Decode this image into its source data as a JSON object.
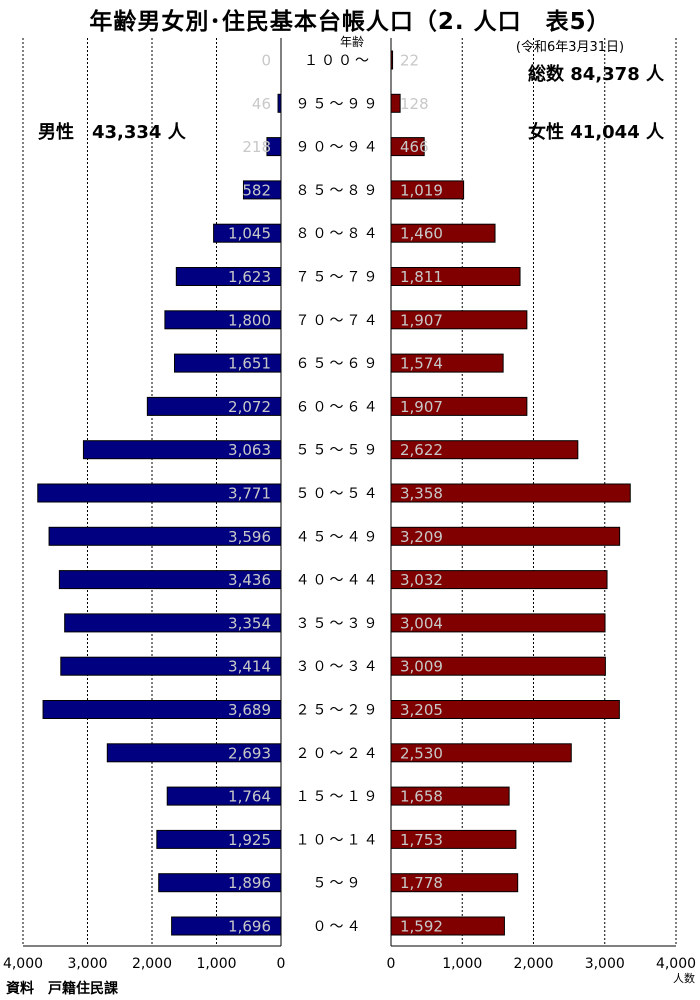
{
  "title": "年齢男女別･住民基本台帳人口（2. 人口　表5）",
  "date": "(令和6年3月31日)",
  "total": "総数 84,378 人",
  "male_total": "男性　43,334 人",
  "female_total": "女性 41,044 人",
  "source": "資料　戸籍住民課",
  "age_heading": "年齢",
  "unit": "人数",
  "colors": {
    "male": "#000080",
    "female": "#800000"
  },
  "chart_data": {
    "type": "bar",
    "orientation": "horizontal-population-pyramid",
    "categories": [
      "100～",
      "95～99",
      "90～94",
      "85～89",
      "80～84",
      "75～79",
      "70～74",
      "65～69",
      "60～64",
      "55～59",
      "50～54",
      "45～49",
      "40～44",
      "35～39",
      "30～34",
      "25～29",
      "20～24",
      "15～19",
      "10～14",
      "5～9",
      "0～4"
    ],
    "series": [
      {
        "name": "男性",
        "values": [
          0,
          46,
          218,
          582,
          1045,
          1623,
          1800,
          1651,
          2072,
          3063,
          3771,
          3596,
          3436,
          3354,
          3414,
          3689,
          2693,
          1764,
          1925,
          1896,
          1696
        ],
        "labels": [
          "0",
          "46",
          "218",
          "582",
          "1,045",
          "1,623",
          "1,800",
          "1,651",
          "2,072",
          "3,063",
          "3,771",
          "3,596",
          "3,436",
          "3,354",
          "3,414",
          "3,689",
          "2,693",
          "1,764",
          "1,925",
          "1,896",
          "1,696"
        ]
      },
      {
        "name": "女性",
        "values": [
          22,
          128,
          466,
          1019,
          1460,
          1811,
          1907,
          1574,
          1907,
          2622,
          3358,
          3209,
          3032,
          3004,
          3009,
          3205,
          2530,
          1658,
          1753,
          1778,
          1592
        ],
        "labels": [
          "22",
          "128",
          "466",
          "1,019",
          "1,460",
          "1,811",
          "1,907",
          "1,574",
          "1,907",
          "2,622",
          "3,358",
          "3,209",
          "3,032",
          "3,004",
          "3,009",
          "3,205",
          "2,530",
          "1,658",
          "1,753",
          "1,778",
          "1,592"
        ]
      }
    ],
    "age_labels": [
      "１００～",
      "９５～９９",
      "９０～９４",
      "８５～８９",
      "８０～８４",
      "７５～７９",
      "７０～７４",
      "６５～６９",
      "６０～６４",
      "５５～５９",
      "５０～５４",
      "４５～４９",
      "４０～４４",
      "３５～３９",
      "３０～３４",
      "２５～２９",
      "２０～２４",
      "１５～１９",
      "１０～１４",
      "５～９",
      "０～４"
    ],
    "male_ticks": [
      "4,000",
      "3,000",
      "2,000",
      "1,000",
      "0"
    ],
    "female_ticks": [
      "0",
      "1,000",
      "2,000",
      "3,000",
      "4,000"
    ],
    "xlim": [
      0,
      4000
    ],
    "grid": true
  }
}
